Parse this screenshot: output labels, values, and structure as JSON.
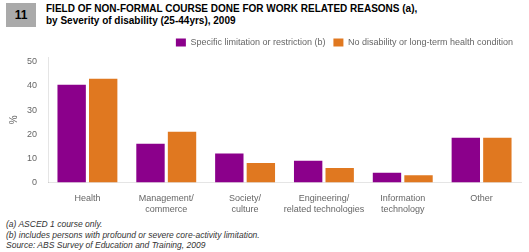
{
  "chart_data": {
    "type": "bar",
    "title": "FIELD OF NON-FORMAL COURSE DONE FOR WORK RELATED REASONS (a),",
    "subtitle": "by Severity of disability (25-44yrs), 2009",
    "categories": [
      "Health",
      "Management/\ncommerce",
      "Society/\nculture",
      "Engineering/\nrelated technologies",
      "Information\ntechnology",
      "Other"
    ],
    "series": [
      {
        "name": "Specific limitation or restriction (b)",
        "color": "#8B008B",
        "values": [
          40.5,
          16.0,
          12.0,
          9.0,
          4.0,
          18.5
        ]
      },
      {
        "name": "No disability or long-term health condition",
        "color": "#E07820",
        "values": [
          43.0,
          21.0,
          8.0,
          6.0,
          3.0,
          18.5
        ]
      }
    ],
    "ylabel": "%",
    "ylim": [
      0,
      52
    ],
    "yticks": [
      0,
      10,
      20,
      30,
      40,
      50
    ],
    "grid": false,
    "legend": "upper right",
    "annotations": [
      "11",
      "(a) ASCED 1 course only.",
      "(b) includes persons with profound or severe core-activity limitation.",
      "Source: ABS Survey of Education and Training, 2009"
    ]
  }
}
